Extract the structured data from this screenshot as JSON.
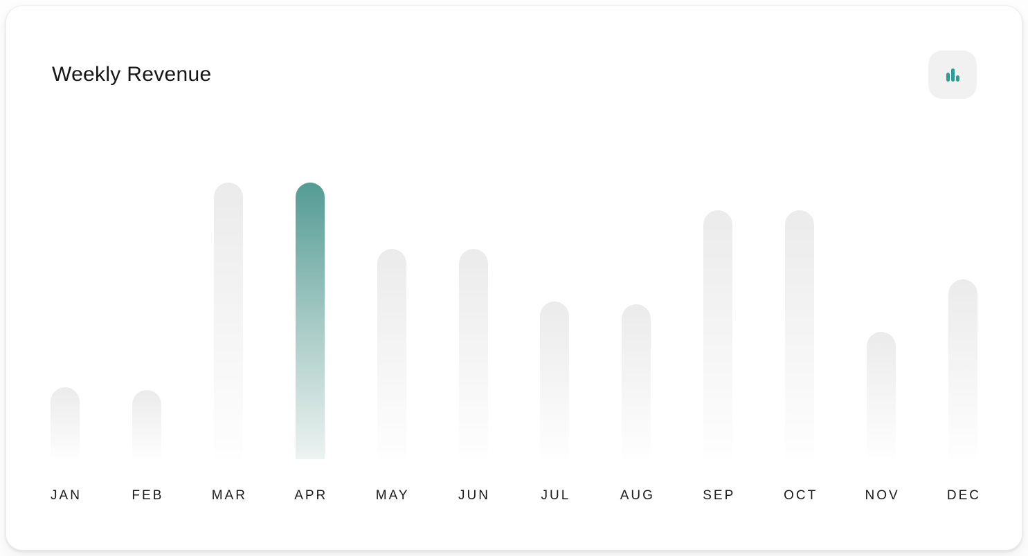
{
  "card": {
    "title": "Weekly Revenue",
    "background": "#ffffff",
    "icon_button": {
      "icon": "bar-chart-icon",
      "icon_color": "#2a9d97",
      "background": "#f1f1f2"
    }
  },
  "chart_data": {
    "type": "bar",
    "title": "Weekly Revenue",
    "categories": [
      "JAN",
      "FEB",
      "MAR",
      "APR",
      "MAY",
      "JUN",
      "JUL",
      "AUG",
      "SEP",
      "OCT",
      "NOV",
      "DEC"
    ],
    "values": [
      26,
      25,
      100,
      100,
      76,
      76,
      57,
      56,
      90,
      90,
      46,
      65
    ],
    "ylim": [
      0,
      100
    ],
    "xlabel": "",
    "ylabel": "",
    "grid": false,
    "legend": false,
    "value_axis_visible": false,
    "highlighted_category": "APR",
    "bar_colors": {
      "default_gradient": [
        "#ebebeb",
        "#fefefe"
      ],
      "highlight_gradient": [
        "#549b94",
        "#a5c9c4",
        "#edf3f1"
      ]
    }
  },
  "colors": {
    "accent_teal": "#2a9d97",
    "label_text": "#191919",
    "title_text": "#161616"
  }
}
